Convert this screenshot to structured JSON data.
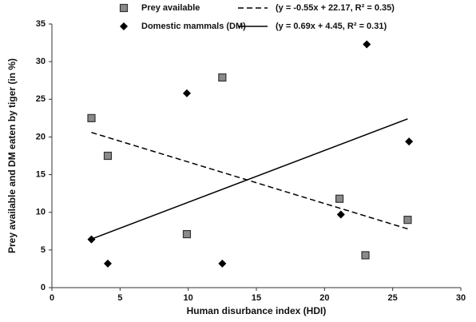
{
  "chart_data": {
    "type": "scatter",
    "x_label": "Human disurbance index (HDI)",
    "y_label": "Prey available and DM eaten by tiger (in %)",
    "xlim": [
      0,
      30
    ],
    "xticks": [
      0,
      5,
      10,
      15,
      20,
      25,
      30
    ],
    "ylim": [
      0,
      35
    ],
    "yticks": [
      0,
      5,
      10,
      15,
      20,
      25,
      30,
      35
    ],
    "grid": false,
    "series": [
      {
        "name": "Prey available",
        "marker": "square",
        "color": "#8a8a8a",
        "x": [
          2.9,
          4.1,
          9.9,
          12.5,
          21.1,
          23.0,
          26.1
        ],
        "values": [
          22.5,
          17.5,
          7.1,
          27.9,
          11.8,
          4.3,
          9.0
        ]
      },
      {
        "name": "Domestic mammals (DM)",
        "marker": "diamond",
        "color": "#000000",
        "x": [
          2.9,
          4.1,
          9.9,
          12.5,
          21.2,
          23.1,
          26.2
        ],
        "values": [
          6.4,
          3.2,
          25.8,
          3.2,
          9.7,
          32.3,
          19.4
        ]
      }
    ],
    "trendlines": [
      {
        "name": "(y = -0.55x + 22.17, R² = 0.35)",
        "style": "dashed",
        "color": "#000000",
        "x": [
          2.9,
          26.1
        ],
        "values": [
          20.6,
          7.8
        ]
      },
      {
        "name": "(y = 0.69x + 4.45, R² = 0.31)",
        "style": "solid",
        "color": "#000000",
        "x": [
          2.9,
          26.1
        ],
        "values": [
          6.45,
          22.4
        ]
      }
    ]
  }
}
